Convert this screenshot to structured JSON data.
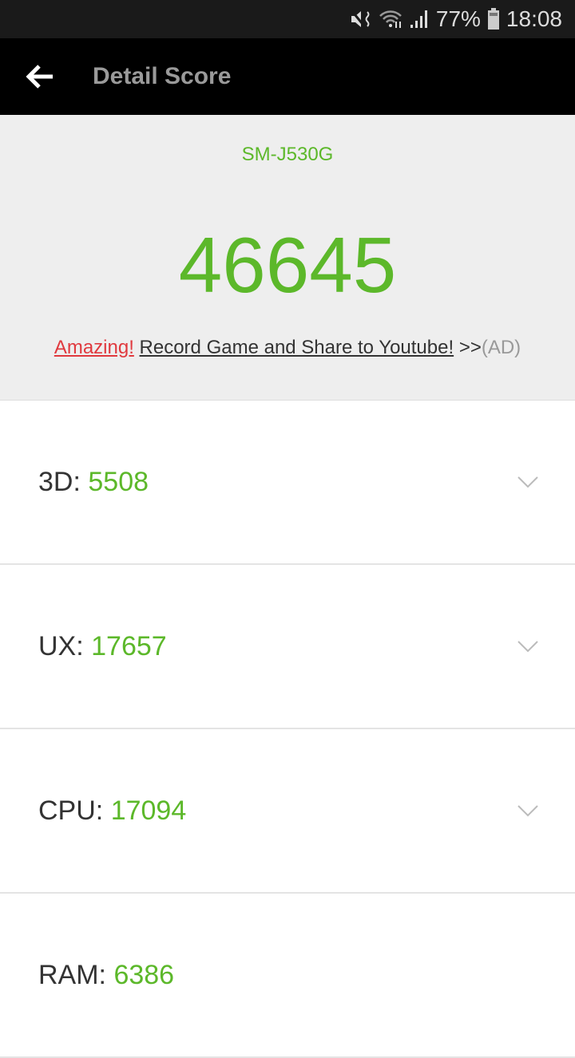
{
  "status_bar": {
    "battery": "77%",
    "time": "18:08"
  },
  "app_bar": {
    "title": "Detail Score"
  },
  "summary": {
    "model": "SM-J530G",
    "total_score": "46645",
    "ad": {
      "highlight": "Amazing!",
      "link": "Record Game and Share to Youtube!",
      "arrows": ">>",
      "tag": "(AD)"
    }
  },
  "colors": {
    "accent": "#5cb82a",
    "highlight": "#e0393e"
  },
  "scores": [
    {
      "label": "3D:",
      "value": "5508",
      "expandable": true
    },
    {
      "label": "UX:",
      "value": "17657",
      "expandable": true
    },
    {
      "label": "CPU:",
      "value": "17094",
      "expandable": true
    },
    {
      "label": "RAM:",
      "value": "6386",
      "expandable": false
    }
  ]
}
